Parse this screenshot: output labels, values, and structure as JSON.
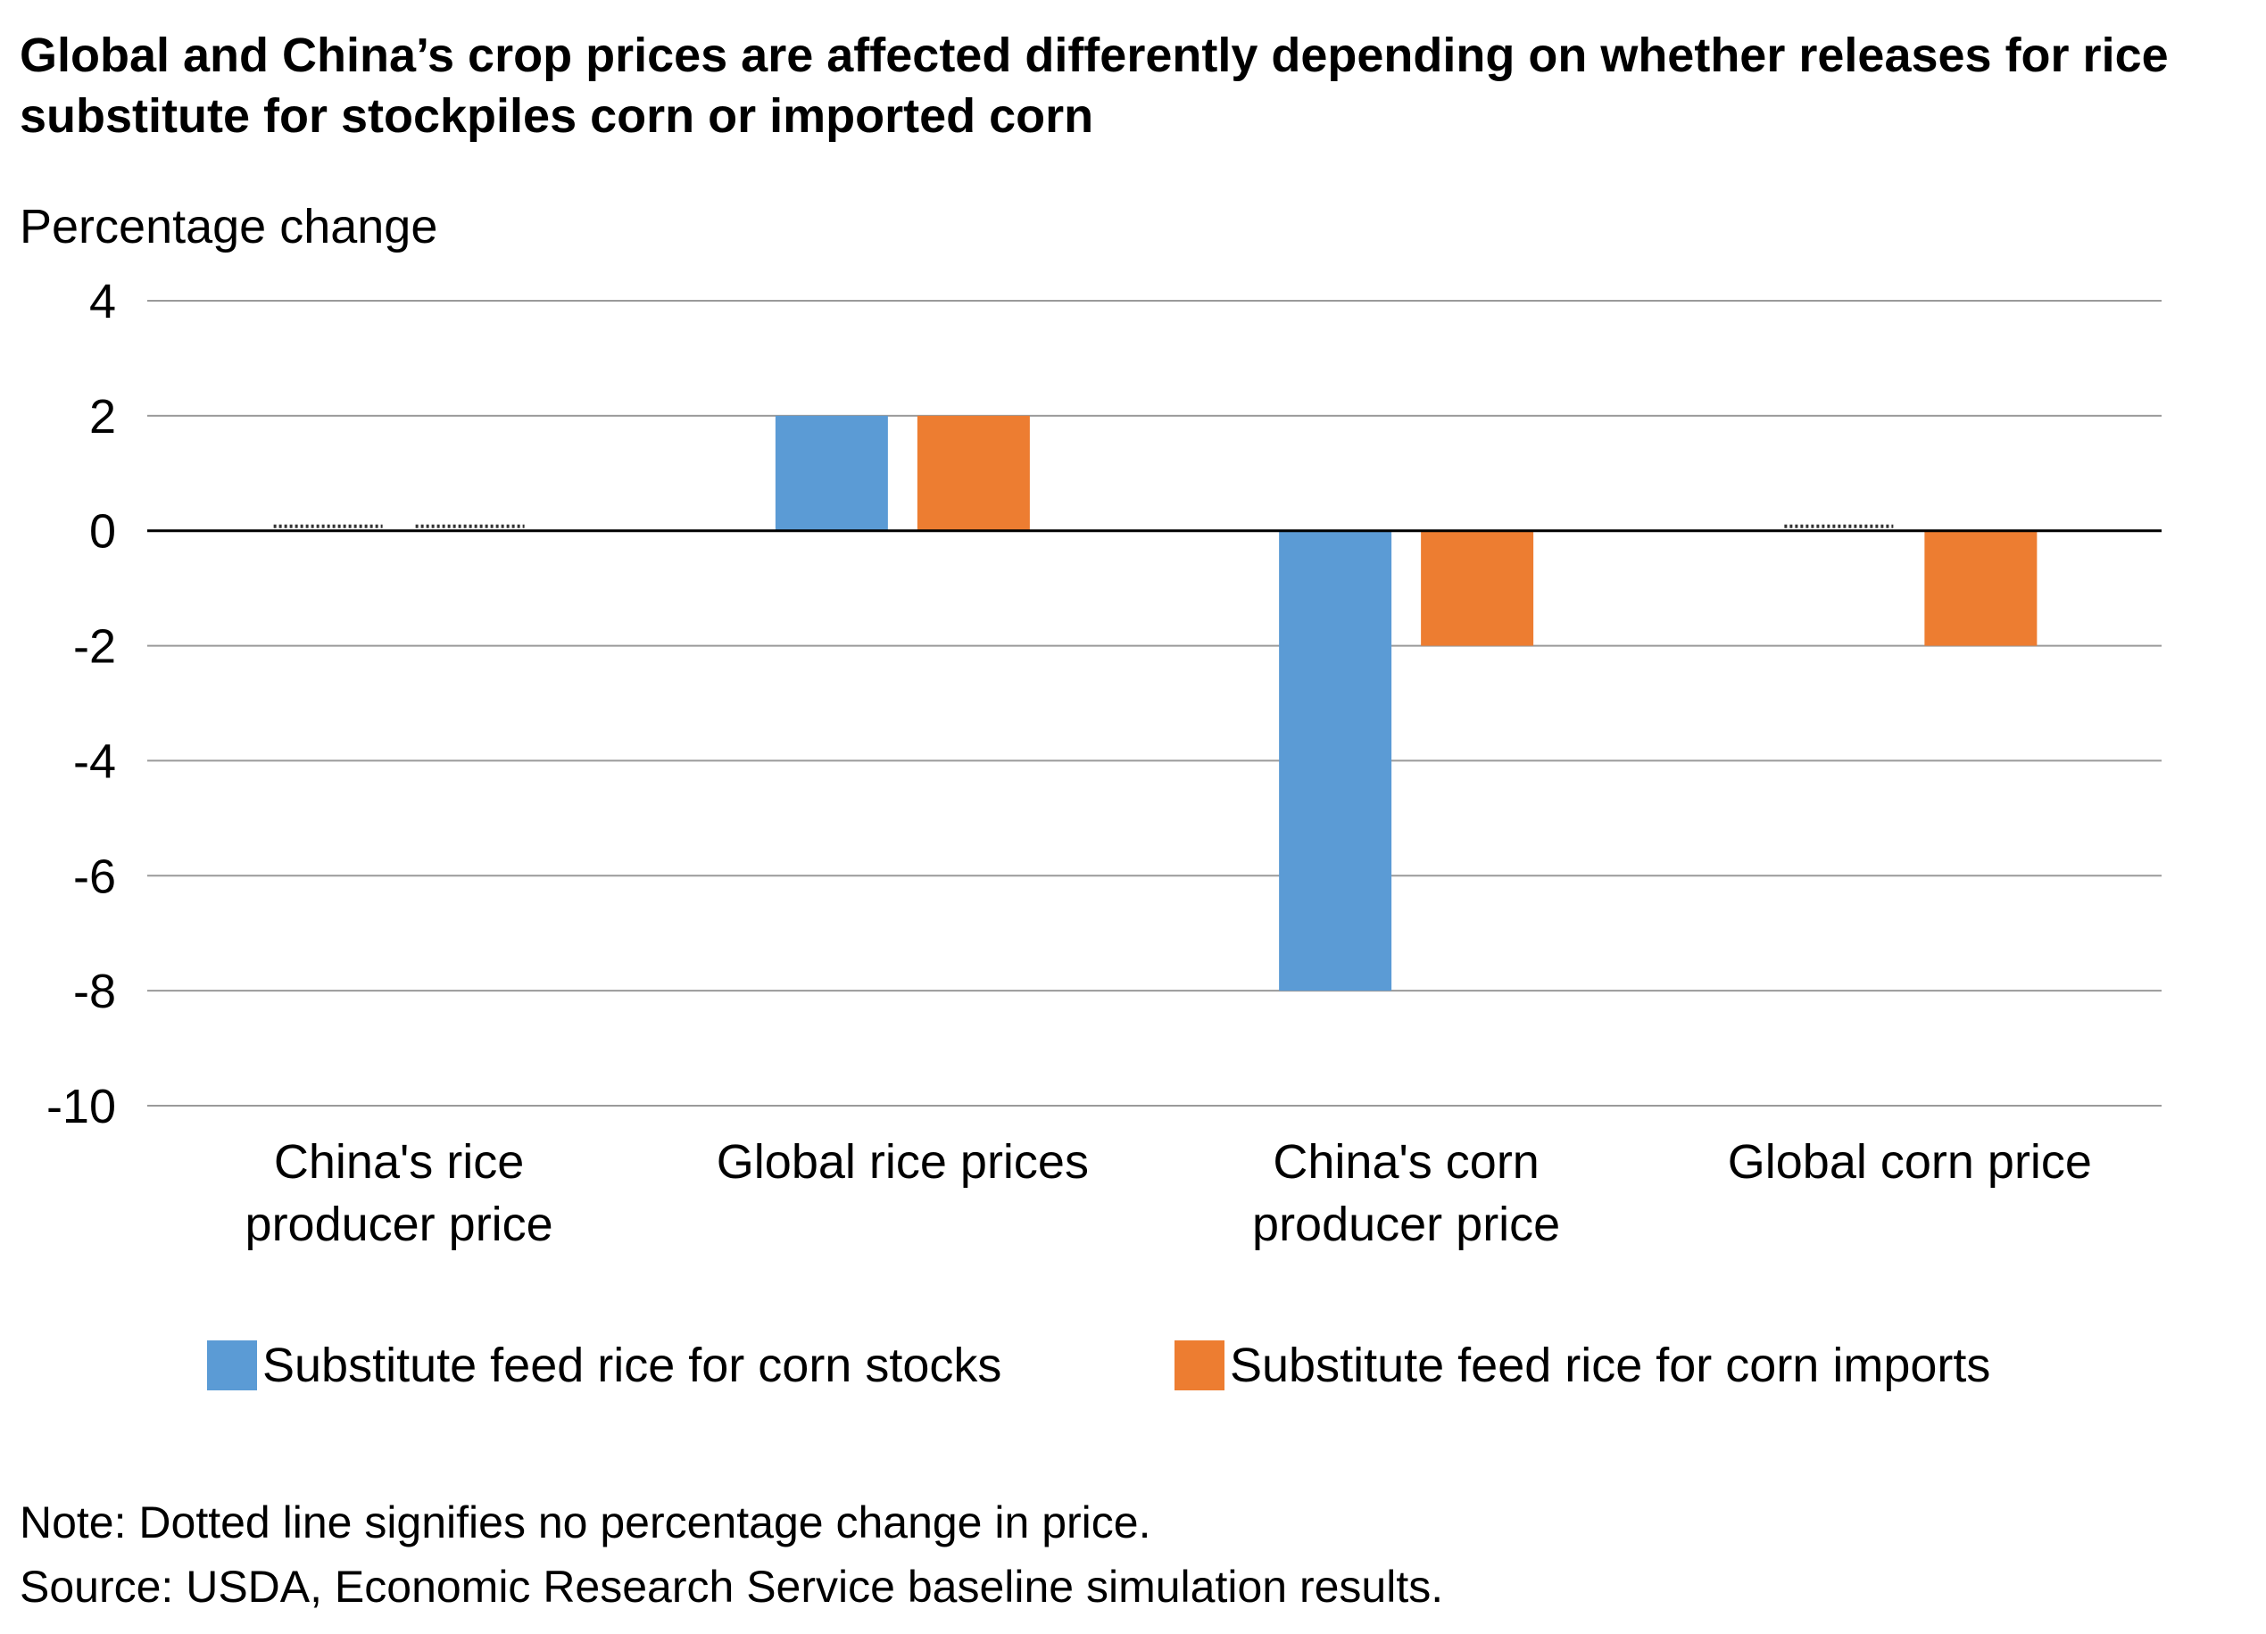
{
  "title": "Global and China’s crop prices are affected differently depending on whether releases for rice substitute for stockpiles corn or imported corn",
  "chart_data": {
    "type": "bar",
    "title": "Global and China’s crop prices are affected differently depending on whether releases for rice substitute for stockpiles corn or imported corn",
    "ylabel": "Percentage change",
    "xlabel": "",
    "ylim": [
      -10,
      4
    ],
    "yticks": [
      4,
      2,
      0,
      -2,
      -4,
      -6,
      -8,
      -10
    ],
    "grid": true,
    "legend_position": "bottom",
    "categories": [
      [
        "China's rice",
        "producer price"
      ],
      [
        "Global rice prices"
      ],
      [
        "China's corn",
        "producer price"
      ],
      [
        "Global corn price"
      ]
    ],
    "series": [
      {
        "name": "Substitute feed rice for corn stocks",
        "color": "#5b9bd5",
        "values": [
          0,
          2,
          -8,
          0
        ]
      },
      {
        "name": "Substitute feed rice for corn imports",
        "color": "#ed7d31",
        "values": [
          0,
          2,
          -2,
          -2
        ]
      }
    ]
  },
  "notes": [
    "Note: Dotted line signifies no percentage change in price.",
    "Source: USDA, Economic Research Service baseline simulation results."
  ]
}
